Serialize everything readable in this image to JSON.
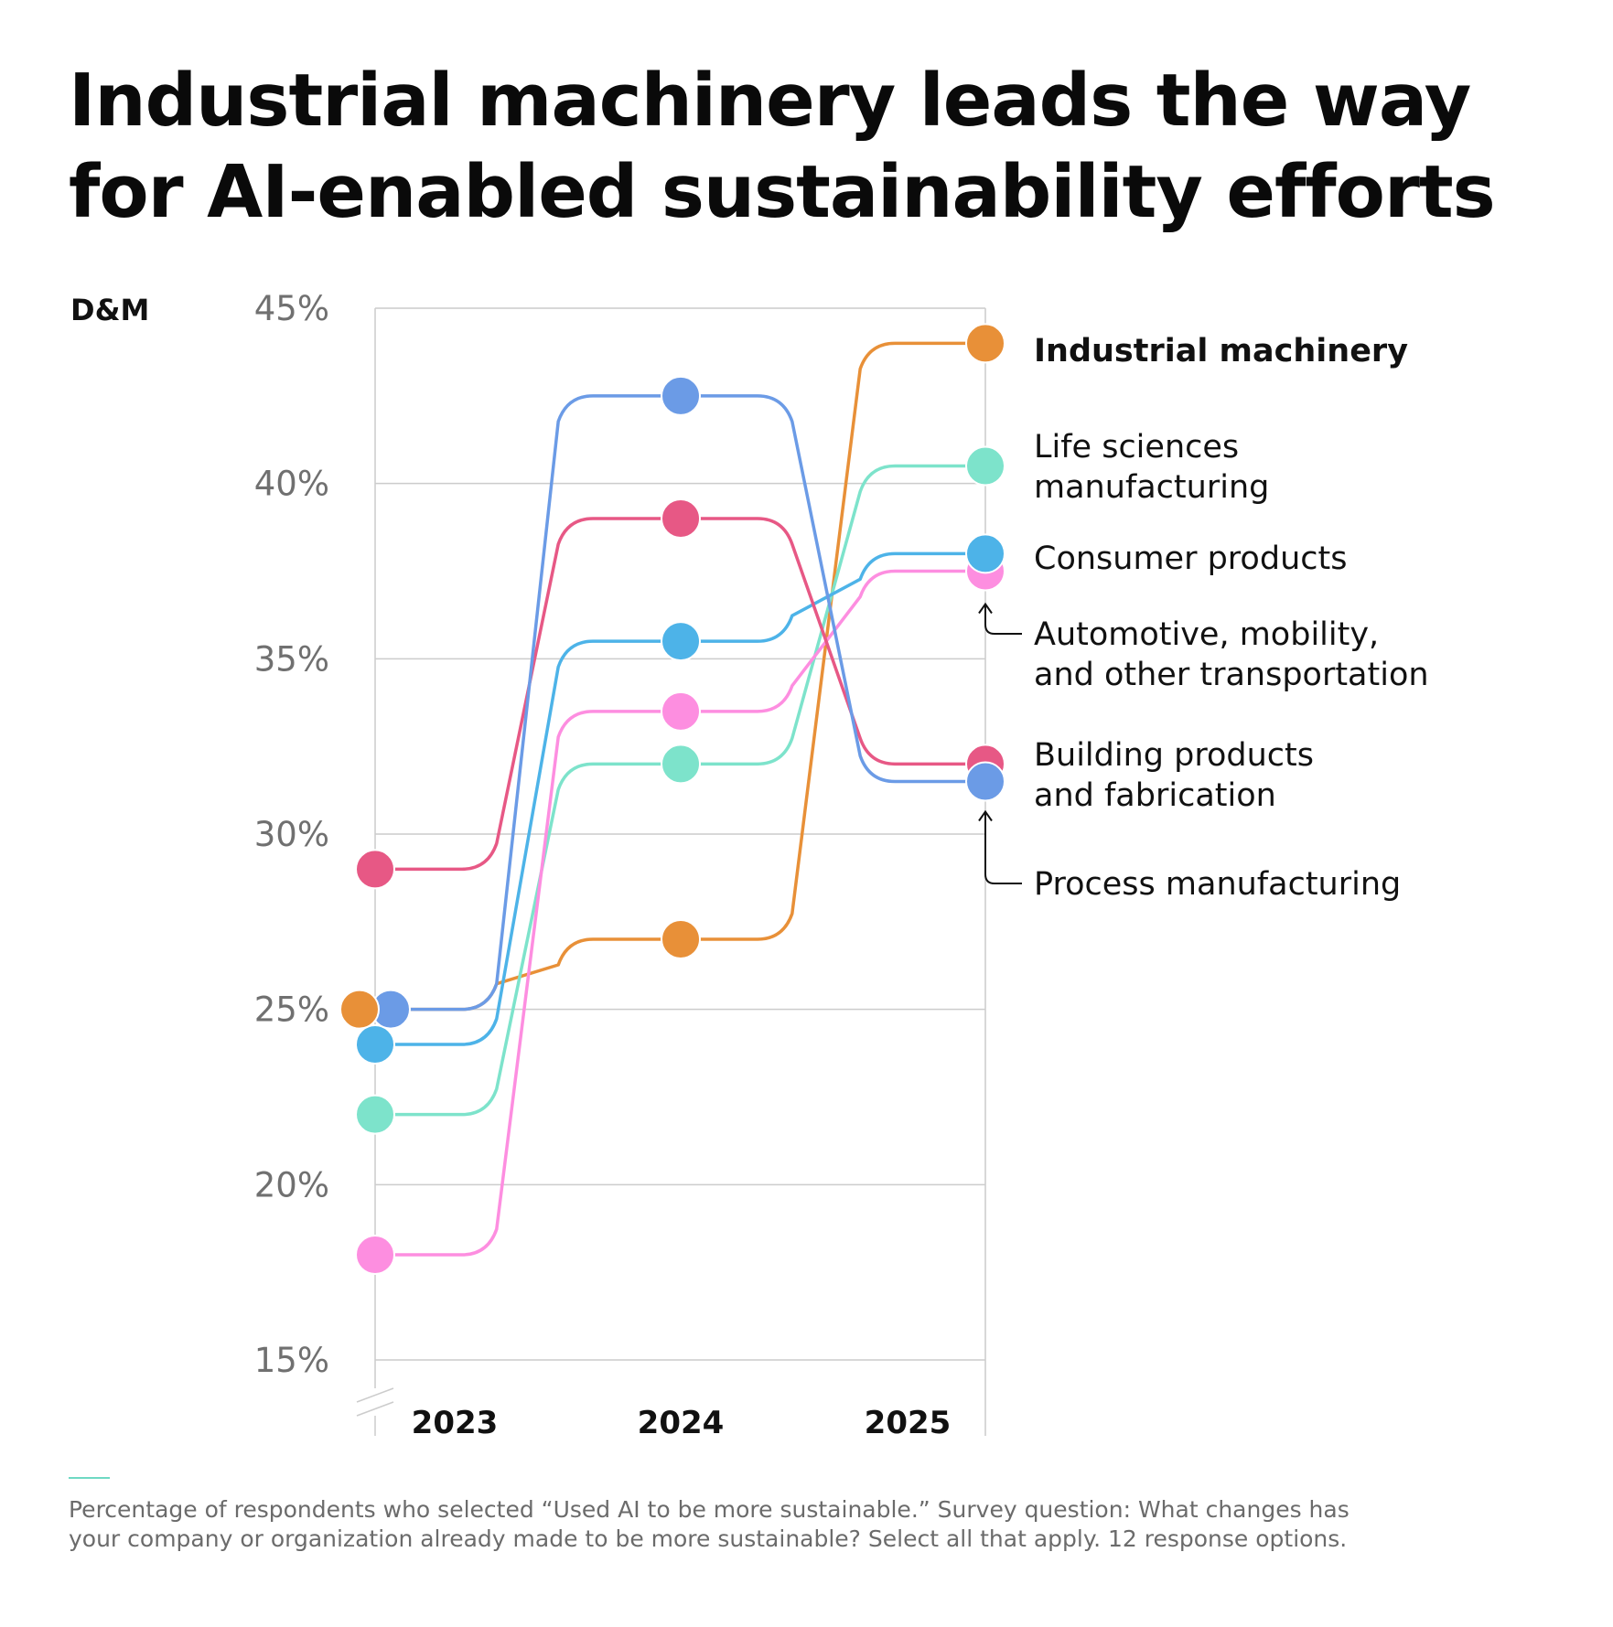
{
  "title": {
    "line1": "Industrial machinery leads the way",
    "line2": "for AI-enabled sustainability efforts"
  },
  "brand_label": "D&M",
  "footnote": {
    "line1": "Percentage of respondents who selected “Used AI to be more sustainable.” Survey question: What changes has",
    "line2": "your company or organization already made to be more sustainable? Select all that apply. 12 response options."
  },
  "colors": {
    "grid": "#cccccc",
    "tick_text": "#707070",
    "accent_rule": "#6fd9c4"
  },
  "chart_data": {
    "type": "line",
    "categories": [
      "2023",
      "2024",
      "2025"
    ],
    "ylim": [
      15,
      45
    ],
    "yticks": [
      15,
      20,
      25,
      30,
      35,
      40,
      45
    ],
    "ytick_labels": [
      "15%",
      "20%",
      "25%",
      "30%",
      "35%",
      "40%",
      "45%"
    ],
    "axis_break": true,
    "grid": true,
    "legend_placement": "right",
    "series": [
      {
        "name": "Industrial machinery",
        "color": "#e89038",
        "values": [
          25,
          27,
          44
        ],
        "bold": true
      },
      {
        "name": "Life sciences manufacturing",
        "color": "#7de3cb",
        "values": [
          22,
          32,
          40.5
        ]
      },
      {
        "name": "Consumer products",
        "color": "#4db3e8",
        "values": [
          24,
          35.5,
          38
        ]
      },
      {
        "name": "Automotive, mobility, and other transportation",
        "color": "#fd8ee0",
        "values": [
          18,
          33.5,
          37.5
        ]
      },
      {
        "name": "Building products and fabrication",
        "color": "#e75885",
        "values": [
          29,
          39,
          32
        ]
      },
      {
        "name": "Process manufacturing",
        "color": "#6b9be6",
        "values": [
          25,
          42.5,
          31.5
        ]
      }
    ],
    "legend": [
      {
        "lines": [
          "Industrial machinery"
        ]
      },
      {
        "lines": [
          "Life sciences",
          "manufacturing"
        ]
      },
      {
        "lines": [
          "Consumer products"
        ]
      },
      {
        "lines": [
          "Automotive, mobility,",
          "and other transportation"
        ]
      },
      {
        "lines": [
          "Building products",
          "and fabrication"
        ]
      },
      {
        "lines": [
          "Process manufacturing"
        ]
      }
    ]
  }
}
